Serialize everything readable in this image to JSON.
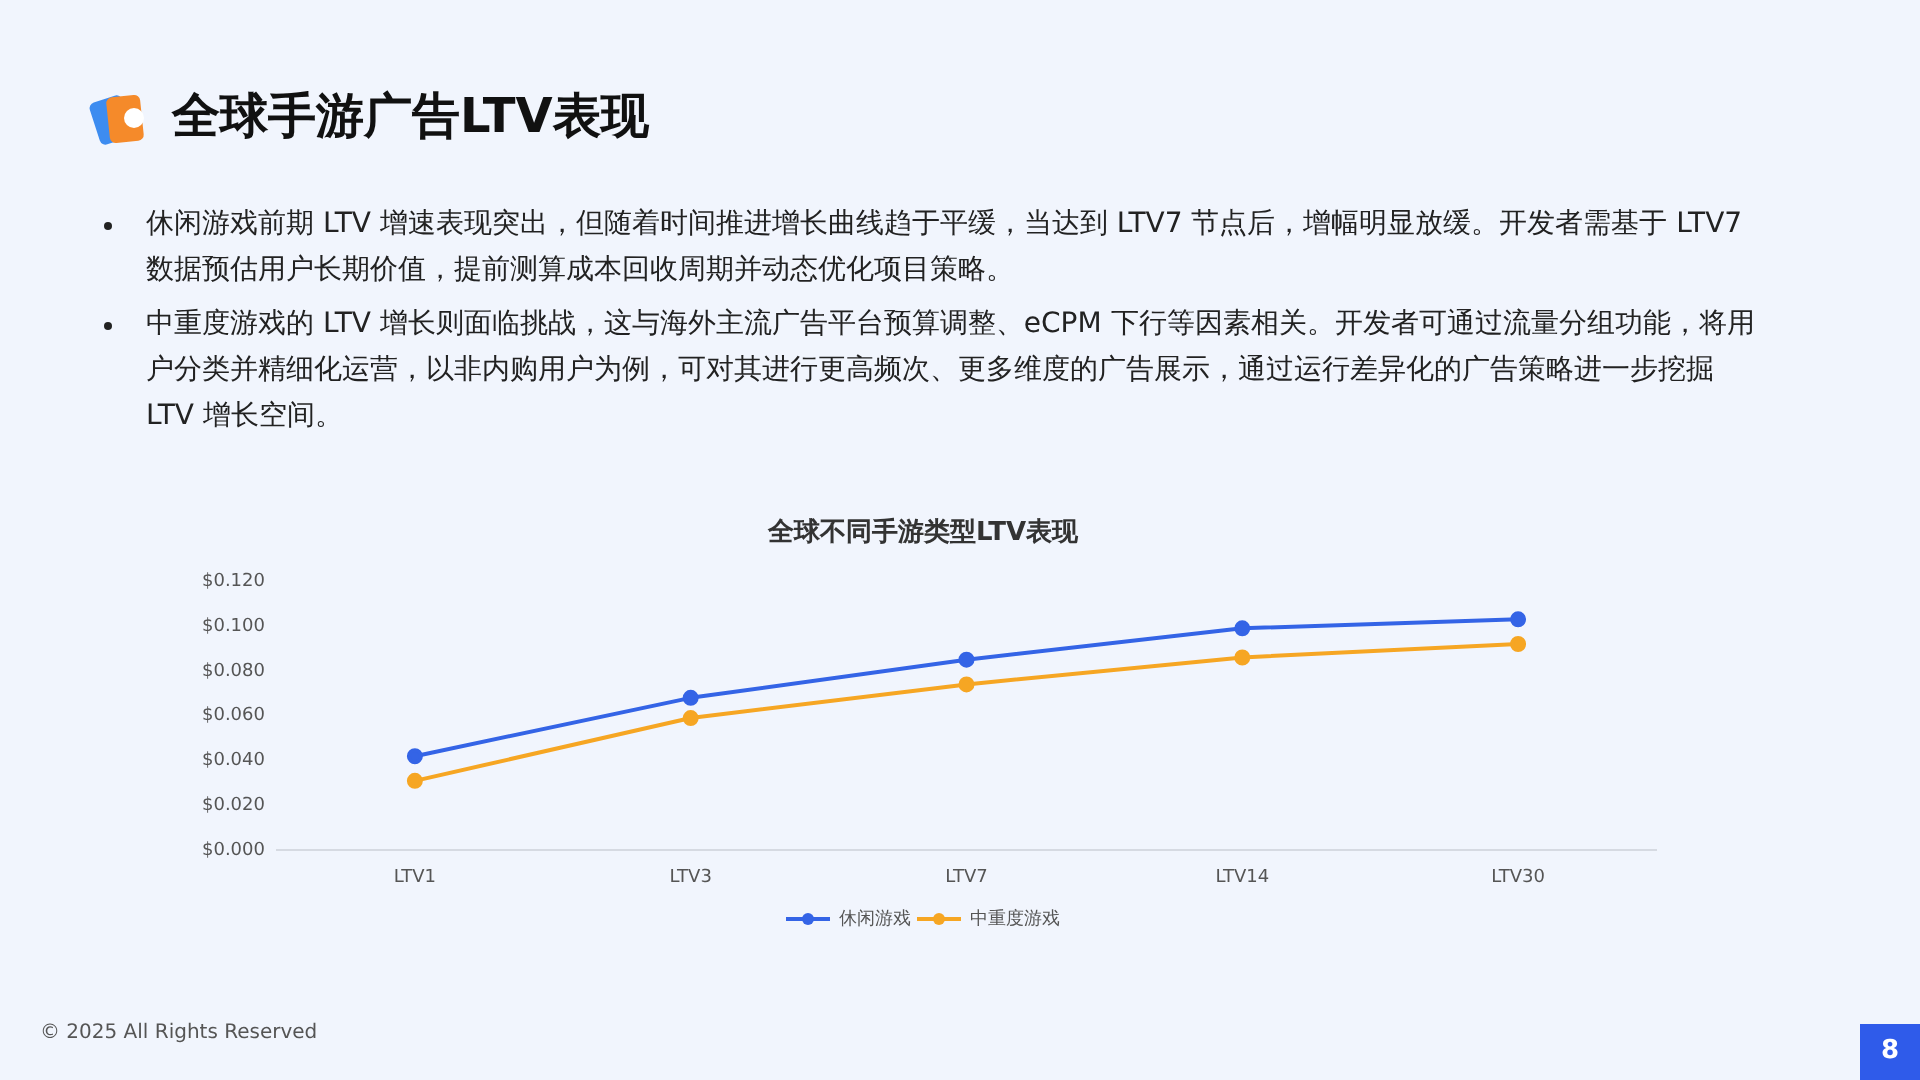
{
  "chart_data": {
    "type": "line",
    "title": "全球手游广告LTV表现",
    "subtitle": "全球不同手游类型LTV表现",
    "categories": [
      "LTV1",
      "LTV3",
      "LTV7",
      "LTV14",
      "LTV30"
    ],
    "series": [
      {
        "name": "休闲游戏",
        "color": "#3464e6",
        "values": [
          0.042,
          0.068,
          0.085,
          0.099,
          0.103
        ]
      },
      {
        "name": "中重度游戏",
        "color": "#f6a623",
        "values": [
          0.031,
          0.059,
          0.074,
          0.086,
          0.092
        ]
      }
    ],
    "ylim": [
      0,
      0.12
    ],
    "yticks": [
      {
        "value": 0,
        "label": "$0.000"
      },
      {
        "value": 0.02,
        "label": "$0.020"
      },
      {
        "value": 0.04,
        "label": "$0.040"
      },
      {
        "value": 0.06,
        "label": "$0.060"
      },
      {
        "value": 0.08,
        "label": "$0.080"
      },
      {
        "value": 0.1,
        "label": "$0.100"
      },
      {
        "value": 0.12,
        "label": "$0.120"
      }
    ],
    "legend": "bottom",
    "marker": "circle",
    "line_style": "solid",
    "annotations": [
      "休闲游戏前期 LTV 增速表现突出，但随着时间推进增长曲线趋于平缓，当达到 LTV7 节点后，增幅明显放缓。开发者需基于 LTV7 数据预估用户长期价值，提前测算成本回收周期并动态优化项目策略。",
      "中重度游戏的 LTV 增长则面临挑战，这与海外主流广告平台预算调整、eCPM 下行等因素相关。开发者可通过流量分组功能，将用户分类并精细化运营，以非内购用户为例，可对其进行更高频次、更多维度的广告展示，通过运行差异化的广告策略进一步挖掘 LTV 增长空间。",
      "© 2025 All Rights Reserved",
      "8"
    ]
  }
}
